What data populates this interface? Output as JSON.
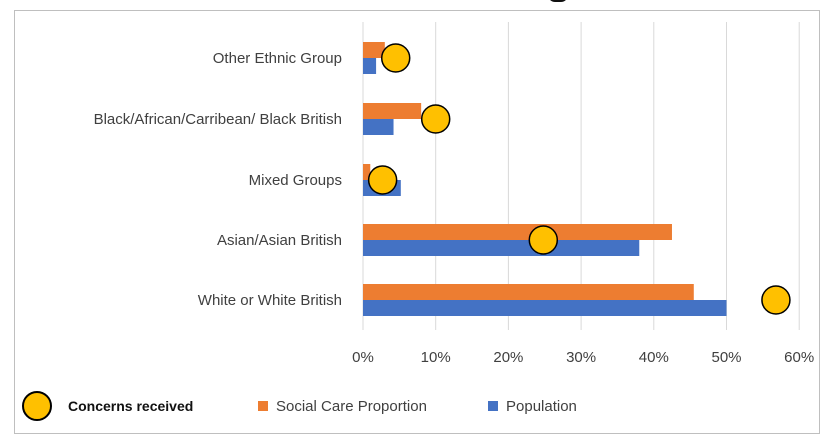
{
  "chart_data": {
    "type": "bar",
    "orientation": "horizontal",
    "title": "",
    "categories": [
      "Other Ethnic Group",
      "Black/African/Carribean/ Black British",
      "Mixed Groups",
      "Asian/Asian British",
      "White or White British"
    ],
    "series": [
      {
        "name": "Social Care Proportion",
        "values": [
          3,
          8,
          1,
          42.5,
          45.5
        ]
      },
      {
        "name": "Population",
        "values": [
          1.8,
          4.2,
          5.2,
          38,
          50
        ]
      },
      {
        "name": "Concerns received",
        "values": [
          4.5,
          10,
          2.7,
          24.8,
          56.8
        ]
      }
    ],
    "xlim": [
      0,
      60
    ],
    "xticks": [
      "0%",
      "10%",
      "20%",
      "30%",
      "40%",
      "50%",
      "60%"
    ],
    "grid": true,
    "legend": "bottom"
  },
  "colors": {
    "social_care": "#ed7d31",
    "population": "#4472c4",
    "concerns": "#ffc000",
    "grid": "#d9d9d9",
    "label_text": "#404040"
  },
  "legend": {
    "concerns": "Concerns received",
    "social_care": "Social Care Proportion",
    "population": "Population"
  }
}
